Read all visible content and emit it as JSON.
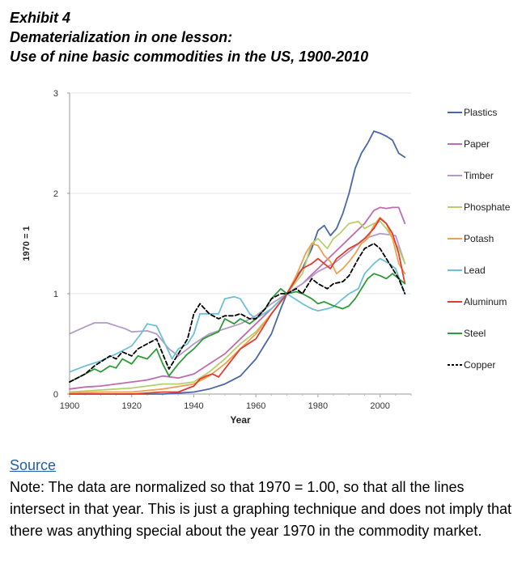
{
  "header": {
    "exhibit": "Exhibit 4",
    "title": "Dematerialization in one lesson:",
    "subtitle": "Use of nine basic commodities in the US, 1900-2010"
  },
  "footer": {
    "source_link": "Source",
    "note": "Note: The data are normalized so that 1970 = 1.00, so that all the lines intersect in that year. This is just a graphing technique and does not imply that there was anything special about the year 1970 in the commodity market."
  },
  "chart_data": {
    "type": "line",
    "title": "",
    "xlabel": "Year",
    "ylabel": "1970 = 1",
    "xlim": [
      1900,
      2010
    ],
    "ylim": [
      0,
      3
    ],
    "x_ticks": [
      1900,
      1920,
      1940,
      1960,
      1980,
      2000
    ],
    "y_ticks": [
      0,
      1,
      2,
      3
    ],
    "grid": true,
    "legend_position": "right",
    "series": [
      {
        "name": "Plastics",
        "color": "#4a68a8",
        "dashed": false,
        "x": [
          1900,
          1930,
          1935,
          1940,
          1945,
          1950,
          1955,
          1960,
          1965,
          1968,
          1970,
          1973,
          1975,
          1978,
          1980,
          1982,
          1984,
          1986,
          1988,
          1990,
          1992,
          1994,
          1996,
          1998,
          2000,
          2002,
          2004,
          2006,
          2008
        ],
        "y": [
          0,
          0,
          0.01,
          0.02,
          0.05,
          0.1,
          0.18,
          0.35,
          0.6,
          0.85,
          1.0,
          1.17,
          1.25,
          1.45,
          1.63,
          1.68,
          1.58,
          1.65,
          1.8,
          2.0,
          2.25,
          2.4,
          2.5,
          2.62,
          2.6,
          2.57,
          2.53,
          2.4,
          2.36
        ]
      },
      {
        "name": "Paper",
        "color": "#c06cb0",
        "dashed": false,
        "x": [
          1900,
          1905,
          1910,
          1915,
          1920,
          1925,
          1930,
          1935,
          1940,
          1945,
          1950,
          1955,
          1960,
          1965,
          1970,
          1975,
          1980,
          1985,
          1990,
          1995,
          1998,
          2000,
          2002,
          2004,
          2006,
          2008
        ],
        "y": [
          0.05,
          0.07,
          0.08,
          0.1,
          0.12,
          0.14,
          0.18,
          0.16,
          0.2,
          0.3,
          0.4,
          0.55,
          0.7,
          0.85,
          1.0,
          1.1,
          1.25,
          1.4,
          1.55,
          1.7,
          1.83,
          1.86,
          1.85,
          1.86,
          1.86,
          1.7
        ]
      },
      {
        "name": "Timber",
        "color": "#b39bc8",
        "dashed": false,
        "x": [
          1900,
          1905,
          1908,
          1912,
          1915,
          1918,
          1920,
          1925,
          1928,
          1932,
          1935,
          1938,
          1940,
          1945,
          1950,
          1955,
          1960,
          1965,
          1970,
          1975,
          1980,
          1985,
          1990,
          1995,
          2000,
          2005,
          2008
        ],
        "y": [
          0.6,
          0.67,
          0.71,
          0.71,
          0.68,
          0.65,
          0.62,
          0.63,
          0.6,
          0.45,
          0.38,
          0.45,
          0.5,
          0.6,
          0.65,
          0.7,
          0.78,
          0.9,
          1.0,
          1.1,
          1.22,
          1.3,
          1.42,
          1.55,
          1.6,
          1.58,
          1.3
        ]
      },
      {
        "name": "Phosphate",
        "color": "#b5cf6b",
        "dashed": false,
        "x": [
          1900,
          1910,
          1920,
          1925,
          1930,
          1935,
          1940,
          1945,
          1950,
          1955,
          1960,
          1965,
          1970,
          1975,
          1978,
          1980,
          1983,
          1985,
          1987,
          1990,
          1993,
          1995,
          1998,
          2000,
          2002,
          2004,
          2006,
          2008
        ],
        "y": [
          0.02,
          0.04,
          0.06,
          0.08,
          0.1,
          0.1,
          0.12,
          0.22,
          0.35,
          0.5,
          0.62,
          0.8,
          1.0,
          1.2,
          1.5,
          1.55,
          1.45,
          1.55,
          1.6,
          1.7,
          1.72,
          1.65,
          1.7,
          1.72,
          1.65,
          1.55,
          1.45,
          1.3
        ]
      },
      {
        "name": "Potash",
        "color": "#f0a050",
        "dashed": false,
        "x": [
          1900,
          1910,
          1920,
          1930,
          1940,
          1945,
          1950,
          1955,
          1960,
          1965,
          1970,
          1973,
          1976,
          1978,
          1980,
          1982,
          1984,
          1986,
          1988,
          1990,
          1992,
          1994,
          1996,
          1998,
          2000,
          2002,
          2004,
          2006,
          2008
        ],
        "y": [
          0.01,
          0.02,
          0.02,
          0.05,
          0.1,
          0.18,
          0.3,
          0.45,
          0.6,
          0.8,
          1.0,
          1.18,
          1.4,
          1.5,
          1.48,
          1.38,
          1.32,
          1.2,
          1.25,
          1.32,
          1.4,
          1.5,
          1.55,
          1.68,
          1.76,
          1.7,
          1.55,
          1.3,
          1.2
        ]
      },
      {
        "name": "Lead",
        "color": "#6dc0d5",
        "dashed": false,
        "x": [
          1900,
          1905,
          1910,
          1915,
          1920,
          1923,
          1925,
          1928,
          1930,
          1933,
          1935,
          1938,
          1940,
          1942,
          1945,
          1948,
          1950,
          1953,
          1955,
          1958,
          1960,
          1965,
          1970,
          1975,
          1978,
          1980,
          1983,
          1985,
          1988,
          1990,
          1993,
          1995,
          1998,
          2000,
          2003,
          2005,
          2008
        ],
        "y": [
          0.22,
          0.28,
          0.33,
          0.4,
          0.48,
          0.6,
          0.7,
          0.68,
          0.55,
          0.35,
          0.45,
          0.5,
          0.6,
          0.8,
          0.8,
          0.8,
          0.95,
          0.97,
          0.95,
          0.8,
          0.75,
          0.85,
          1.0,
          0.9,
          0.85,
          0.83,
          0.85,
          0.87,
          0.95,
          1.0,
          1.05,
          1.2,
          1.3,
          1.35,
          1.3,
          1.25,
          1.0
        ]
      },
      {
        "name": "Aluminum",
        "color": "#e03c30",
        "dashed": false,
        "x": [
          1900,
          1920,
          1930,
          1935,
          1940,
          1942,
          1944,
          1946,
          1948,
          1950,
          1955,
          1960,
          1965,
          1970,
          1973,
          1975,
          1978,
          1980,
          1982,
          1984,
          1986,
          1988,
          1990,
          1993,
          1995,
          1998,
          2000,
          2002,
          2004,
          2006,
          2008
        ],
        "y": [
          0,
          0,
          0.02,
          0.02,
          0.08,
          0.15,
          0.18,
          0.2,
          0.17,
          0.25,
          0.45,
          0.55,
          0.8,
          1.0,
          1.15,
          1.25,
          1.3,
          1.35,
          1.3,
          1.25,
          1.35,
          1.4,
          1.45,
          1.5,
          1.55,
          1.65,
          1.75,
          1.7,
          1.6,
          1.4,
          1.1
        ]
      },
      {
        "name": "Steel",
        "color": "#2e9a38",
        "dashed": false,
        "x": [
          1900,
          1905,
          1908,
          1910,
          1913,
          1915,
          1917,
          1920,
          1922,
          1925,
          1928,
          1930,
          1932,
          1935,
          1938,
          1940,
          1943,
          1945,
          1948,
          1950,
          1953,
          1955,
          1958,
          1960,
          1963,
          1965,
          1968,
          1970,
          1973,
          1975,
          1978,
          1980,
          1982,
          1985,
          1988,
          1990,
          1992,
          1994,
          1996,
          1998,
          2000,
          2002,
          2004,
          2006,
          2008
        ],
        "y": [
          0.12,
          0.2,
          0.25,
          0.22,
          0.28,
          0.26,
          0.35,
          0.3,
          0.38,
          0.35,
          0.45,
          0.3,
          0.18,
          0.3,
          0.4,
          0.45,
          0.55,
          0.58,
          0.62,
          0.75,
          0.7,
          0.75,
          0.7,
          0.75,
          0.85,
          0.95,
          1.05,
          1.0,
          1.02,
          1.0,
          0.95,
          0.9,
          0.92,
          0.88,
          0.85,
          0.88,
          0.95,
          1.05,
          1.15,
          1.2,
          1.18,
          1.15,
          1.2,
          1.15,
          1.1
        ]
      },
      {
        "name": "Copper",
        "color": "#000000",
        "dashed": true,
        "x": [
          1900,
          1905,
          1908,
          1910,
          1913,
          1915,
          1917,
          1920,
          1922,
          1925,
          1928,
          1930,
          1932,
          1935,
          1938,
          1940,
          1942,
          1945,
          1948,
          1950,
          1953,
          1955,
          1958,
          1960,
          1963,
          1965,
          1968,
          1970,
          1973,
          1975,
          1978,
          1980,
          1983,
          1985,
          1988,
          1990,
          1993,
          1995,
          1998,
          2000,
          2002,
          2004,
          2006,
          2008
        ],
        "y": [
          0.12,
          0.2,
          0.28,
          0.32,
          0.38,
          0.35,
          0.42,
          0.38,
          0.45,
          0.5,
          0.55,
          0.4,
          0.25,
          0.4,
          0.55,
          0.8,
          0.9,
          0.8,
          0.75,
          0.78,
          0.78,
          0.8,
          0.75,
          0.75,
          0.85,
          0.95,
          1.0,
          1.0,
          1.05,
          1.0,
          1.15,
          1.1,
          1.05,
          1.1,
          1.12,
          1.18,
          1.35,
          1.45,
          1.5,
          1.45,
          1.35,
          1.25,
          1.15,
          1.0
        ]
      }
    ]
  }
}
